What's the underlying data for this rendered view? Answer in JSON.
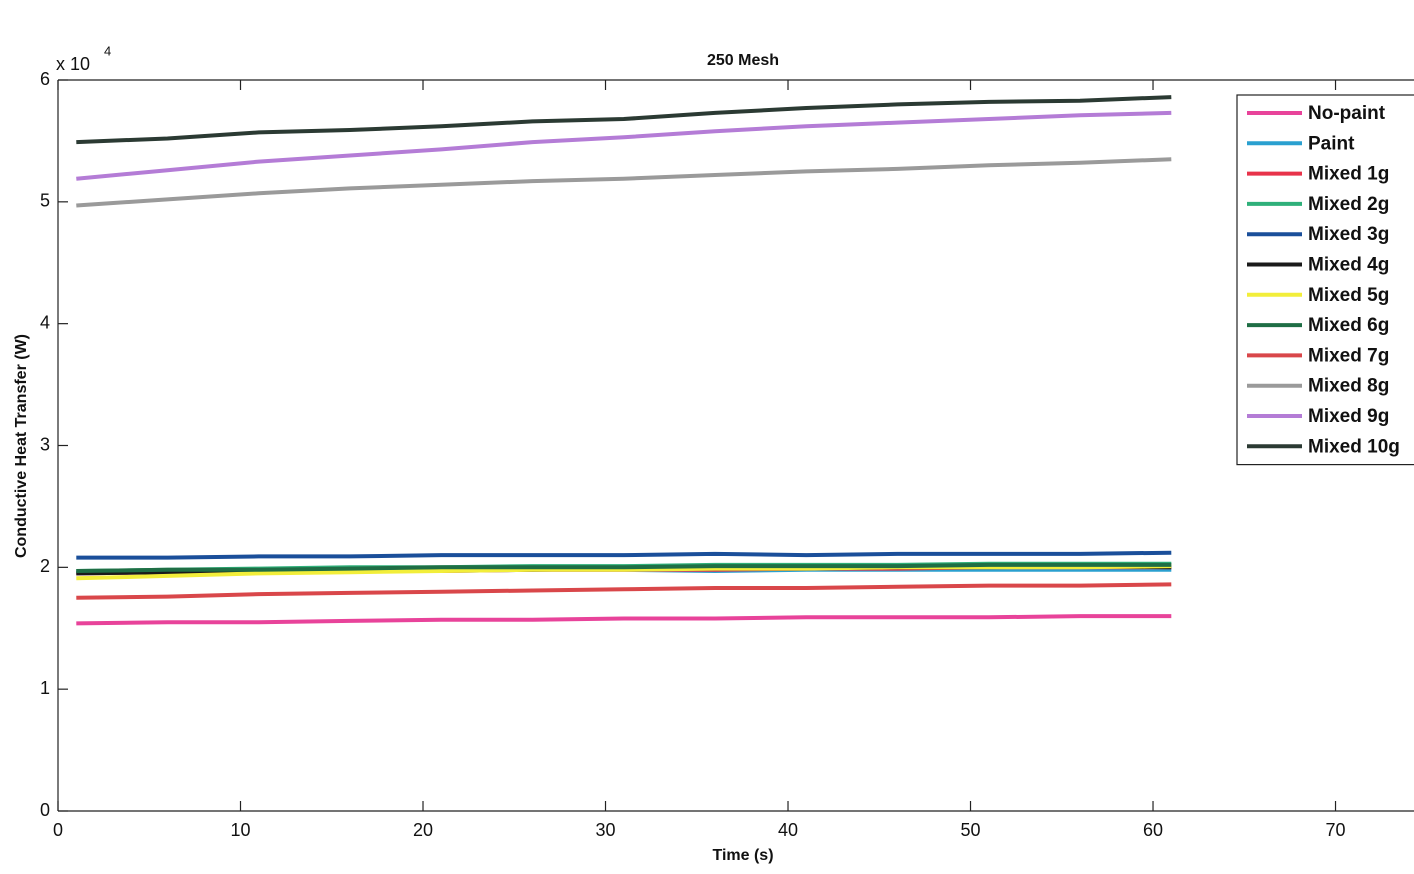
{
  "chart_data": {
    "type": "line",
    "title": "250 Mesh",
    "x_label": "Time (s)",
    "y_label": "Conductive Heat Transfer (W)",
    "y_scale_label": {
      "base": "x 10",
      "exponent": "4"
    },
    "x": [
      1,
      6,
      11,
      16,
      21,
      26,
      31,
      36,
      41,
      46,
      51,
      56,
      61
    ],
    "series": [
      {
        "name": "No-paint",
        "color": "#e8439a",
        "values": [
          1.54,
          1.55,
          1.55,
          1.56,
          1.57,
          1.57,
          1.58,
          1.58,
          1.59,
          1.59,
          1.59,
          1.6,
          1.6
        ]
      },
      {
        "name": "Paint",
        "color": "#2aa0d0",
        "values": [
          1.96,
          1.96,
          1.97,
          1.97,
          1.97,
          1.98,
          1.98,
          1.97,
          1.98,
          1.98,
          1.98,
          1.98,
          1.98
        ]
      },
      {
        "name": "Mixed 1g",
        "color": "#e8334a",
        "values": [
          1.95,
          1.96,
          1.96,
          1.97,
          1.97,
          1.98,
          1.98,
          1.98,
          1.99,
          1.99,
          2.0,
          2.0,
          2.0
        ]
      },
      {
        "name": "Mixed 2g",
        "color": "#2fb07a",
        "values": [
          1.97,
          1.98,
          1.99,
          2.0,
          2.0,
          2.01,
          2.01,
          2.02,
          2.02,
          2.02,
          2.03,
          2.03,
          2.03
        ]
      },
      {
        "name": "Mixed 3g",
        "color": "#1a4f9a",
        "values": [
          2.08,
          2.08,
          2.09,
          2.09,
          2.1,
          2.1,
          2.1,
          2.11,
          2.1,
          2.11,
          2.11,
          2.11,
          2.12
        ]
      },
      {
        "name": "Mixed 4g",
        "color": "#1a1a1a",
        "values": [
          1.95,
          1.96,
          1.97,
          1.98,
          1.98,
          1.98,
          1.99,
          1.99,
          1.99,
          2.0,
          2.0,
          2.01,
          2.0
        ]
      },
      {
        "name": "Mixed 5g",
        "color": "#f2ee3a",
        "values": [
          1.91,
          1.93,
          1.95,
          1.96,
          1.97,
          1.98,
          1.98,
          1.99,
          1.99,
          2.0,
          2.0,
          2.0,
          2.01
        ]
      },
      {
        "name": "Mixed 6g",
        "color": "#1f6e45",
        "values": [
          1.97,
          1.98,
          1.98,
          1.99,
          2.0,
          2.0,
          2.0,
          2.01,
          2.01,
          2.01,
          2.02,
          2.02,
          2.02
        ]
      },
      {
        "name": "Mixed 7g",
        "color": "#d9474a",
        "values": [
          1.75,
          1.76,
          1.78,
          1.79,
          1.8,
          1.81,
          1.82,
          1.83,
          1.83,
          1.84,
          1.85,
          1.85,
          1.86
        ]
      },
      {
        "name": "Mixed 8g",
        "color": "#9a9a9a",
        "values": [
          4.97,
          5.02,
          5.07,
          5.11,
          5.14,
          5.17,
          5.19,
          5.22,
          5.25,
          5.27,
          5.3,
          5.32,
          5.35
        ]
      },
      {
        "name": "Mixed 9g",
        "color": "#b47cd6",
        "values": [
          5.19,
          5.26,
          5.33,
          5.38,
          5.43,
          5.49,
          5.53,
          5.58,
          5.62,
          5.65,
          5.68,
          5.71,
          5.73
        ]
      },
      {
        "name": "Mixed 10g",
        "color": "#2b3a33",
        "values": [
          5.49,
          5.52,
          5.57,
          5.59,
          5.62,
          5.66,
          5.68,
          5.73,
          5.77,
          5.8,
          5.82,
          5.83,
          5.86
        ]
      }
    ],
    "xlim": [
      0,
      74.3
    ],
    "xticks": [
      0,
      10,
      20,
      30,
      40,
      50,
      60,
      70
    ],
    "ylim": [
      0,
      6
    ],
    "yticks": [
      0,
      1,
      2,
      3,
      4,
      5,
      6
    ],
    "grid": false,
    "legend": "upper right"
  }
}
